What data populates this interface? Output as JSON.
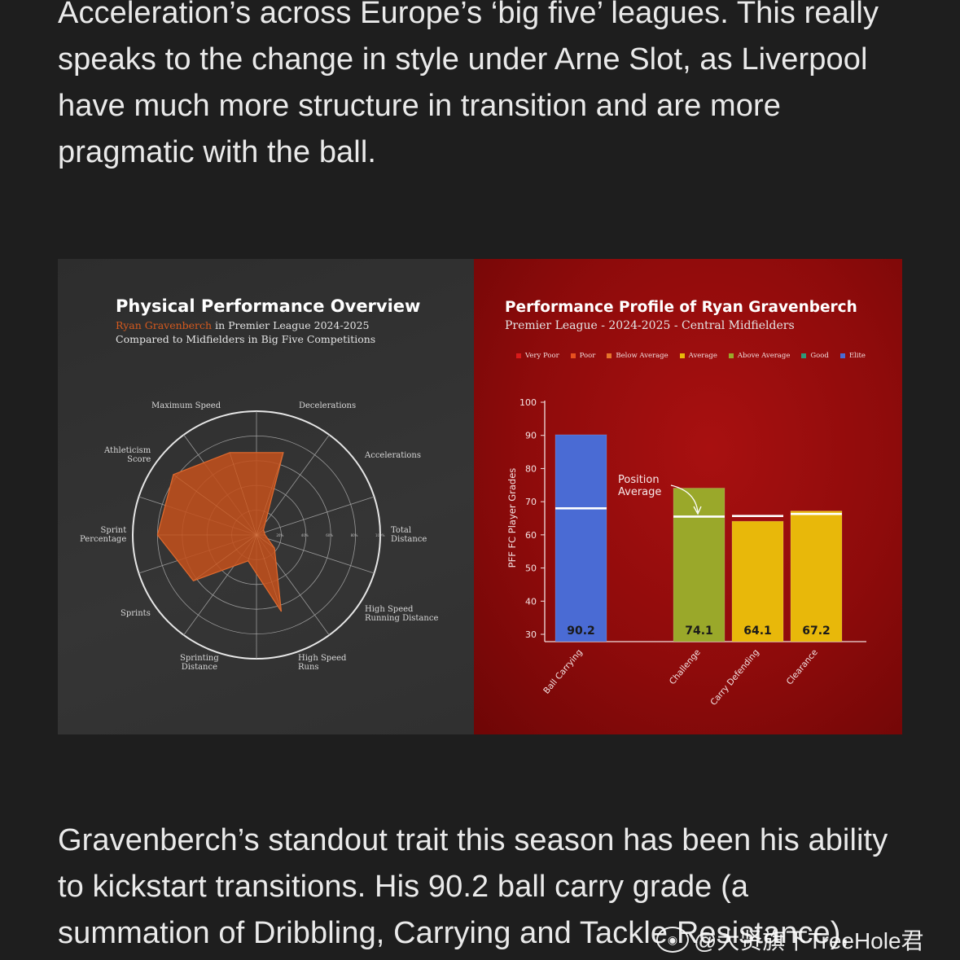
{
  "article": {
    "paragraph_top": "Acceleration’s across Europe’s ‘big five’ leagues. This really speaks to the change in style under Arne Slot, as Liverpool have much more structure in transition and are more pragmatic with the ball.",
    "paragraph_bottom": "Gravenberch’s standout trait this season has been his ability to kickstart transitions. His 90.2 ball carry grade (a summation of Dribbling, Carrying and Tackle Resistance),"
  },
  "radar_panel": {
    "title": "Physical Performance Overview",
    "player_name": "Ryan Gravenberch",
    "subtitle_rest": " in Premier League 2024-2025",
    "subtitle2": "Compared to Midfielders in Big Five Competitions",
    "fill_color": "#c0501c",
    "axes": [
      {
        "label_lines": [
          "Maximum Speed"
        ],
        "value": 0.7
      },
      {
        "label_lines": [
          "Decelerations"
        ],
        "value": 0.07
      },
      {
        "label_lines": [
          "Accelerations"
        ],
        "value": 0.07
      },
      {
        "label_lines": [
          "Total",
          "Distance"
        ],
        "value": 0.18
      },
      {
        "label_lines": [
          "High Speed",
          "Running Distance"
        ],
        "value": 0.65
      },
      {
        "label_lines": [
          "High Speed",
          "Runs"
        ],
        "value": 0.22
      },
      {
        "label_lines": [
          "Sprinting",
          "Distance"
        ],
        "value": 0.63
      },
      {
        "label_lines": [
          "Sprints"
        ],
        "value": 0.8
      },
      {
        "label_lines": [
          "Sprint",
          "Percentage"
        ],
        "value": 0.83
      },
      {
        "label_lines": [
          "Athleticism",
          "Score"
        ],
        "value": 0.7
      }
    ],
    "ring_labels": [
      "20%",
      "40%",
      "60%",
      "80%",
      "100%"
    ]
  },
  "bar_panel": {
    "title": "Performance Profile of Ryan Gravenberch",
    "subtitle": "Premier League - 2024-2025 - Central Midfielders",
    "legend": [
      {
        "label": "Very Poor",
        "color": "#d91a1a"
      },
      {
        "label": "Poor",
        "color": "#e8501e"
      },
      {
        "label": "Below Average",
        "color": "#e5752c"
      },
      {
        "label": "Average",
        "color": "#e8b80a"
      },
      {
        "label": "Above Average",
        "color": "#9aa82a"
      },
      {
        "label": "Good",
        "color": "#2e9a7a"
      },
      {
        "label": "Elite",
        "color": "#4a6bd4"
      }
    ],
    "annotation": "Position\nAverage"
  },
  "chart_data": {
    "type": "bar",
    "title": "Performance Profile of Ryan Gravenberch",
    "subtitle": "Premier League - 2024-2025 - Central Midfielders",
    "ylabel": "PFF FC Player Grades",
    "ylim": [
      30,
      100
    ],
    "yticks": [
      30,
      40,
      50,
      60,
      70,
      80,
      90,
      100
    ],
    "categories": [
      "Ball Carrying",
      "Challenge",
      "Carry Defending",
      "Clearance"
    ],
    "values": [
      90.2,
      74.1,
      64.1,
      67.2
    ],
    "value_labels": [
      "90.2",
      "74.1",
      "64.1",
      "67.2"
    ],
    "position_average": [
      68,
      65.5,
      65.7,
      66.3
    ],
    "bar_colors": [
      "#4a6bd4",
      "#9aa82a",
      "#e8b80a",
      "#e8b80a"
    ],
    "legend_placement": "top",
    "grid": false
  },
  "watermark": {
    "text": "@大贤旗下TreeHole君",
    "logo": "weibo-logo-icon"
  }
}
